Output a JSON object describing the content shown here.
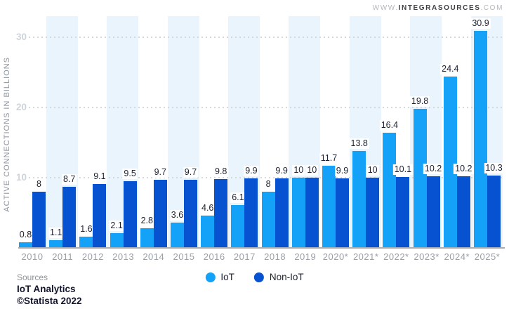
{
  "site": {
    "prefix": "WWW.",
    "brand": "INTEGRASOURCES",
    "suffix": ".COM"
  },
  "chart_data": {
    "type": "bar",
    "title": "",
    "ylabel": "ACTIVE CONNECTIONS IN BILLIONS",
    "xlabel": "",
    "categories": [
      "2010",
      "2011",
      "2012",
      "2013",
      "2014",
      "2015",
      "2016",
      "2017",
      "2018",
      "2019",
      "2020*",
      "2021*",
      "2022*",
      "2023*",
      "2024*",
      "2025*"
    ],
    "series": [
      {
        "name": "IoT",
        "color": "#14a2f8",
        "values": [
          0.8,
          1.1,
          1.6,
          2.1,
          2.8,
          3.6,
          4.6,
          6.1,
          8,
          10,
          11.7,
          13.8,
          16.4,
          19.8,
          24.4,
          30.9
        ],
        "labels": [
          "0.8",
          "1.1",
          "1.6",
          "2.1",
          "2.8",
          "3.6",
          "4.6",
          "6.1",
          "8",
          "10",
          "11.7",
          "13.8",
          "16.4",
          "19.8",
          "24.4",
          "30.9"
        ]
      },
      {
        "name": "Non-IoT",
        "color": "#0752d0",
        "values": [
          8,
          8.7,
          9.1,
          9.5,
          9.7,
          9.7,
          9.8,
          9.9,
          9.9,
          10,
          9.9,
          10,
          10.1,
          10.2,
          10.2,
          10.3
        ],
        "labels": [
          "8",
          "8.7",
          "9.1",
          "9.5",
          "9.7",
          "9.7",
          "9.8",
          "9.9",
          "9.9",
          "10",
          "9.9",
          "10",
          "10.1",
          "10.2",
          "10.2",
          "10.3"
        ]
      }
    ],
    "yticks": [
      10,
      20,
      30
    ],
    "ylim": [
      0,
      33
    ],
    "grid": "horizontal-dotted",
    "background_stripes": "alternate light-blue columns on odd years",
    "stripe_color": "#eaf4fc",
    "legend_position": "bottom-center"
  },
  "footer": {
    "sources_label": "Sources",
    "source_name": "IoT Analytics",
    "copyright": "©Statista 2022"
  }
}
